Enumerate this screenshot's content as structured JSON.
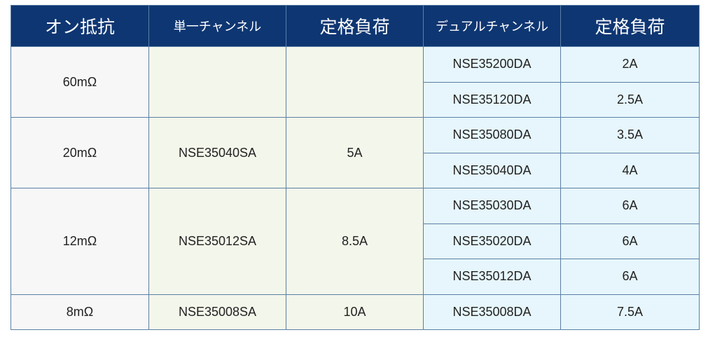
{
  "headers": {
    "on_resistance": "オン抵抗",
    "single_channel": "単一チャンネル",
    "rated_load_single": "定格負荷",
    "dual_channel": "デュアルチャンネル",
    "rated_load_dual": "定格負荷"
  },
  "colors": {
    "header": "#0e3672",
    "col_resistance": "#f7f7f7",
    "col_single": "#f3f6ea",
    "col_dual": "#e6f6fc",
    "border": "#5a7fa6"
  },
  "groups": [
    {
      "resistance": "60mΩ",
      "single": "",
      "single_load": "",
      "dual": [
        {
          "part": "NSE35200DA",
          "load": "2A"
        },
        {
          "part": "NSE35120DA",
          "load": "2.5A"
        }
      ]
    },
    {
      "resistance": "20mΩ",
      "single": "NSE35040SA",
      "single_load": "5A",
      "dual": [
        {
          "part": "NSE35080DA",
          "load": "3.5A"
        },
        {
          "part": "NSE35040DA",
          "load": "4A"
        }
      ]
    },
    {
      "resistance": "12mΩ",
      "single": "NSE35012SA",
      "single_load": "8.5A",
      "dual": [
        {
          "part": "NSE35030DA",
          "load": "6A"
        },
        {
          "part": "NSE35020DA",
          "load": "6A"
        },
        {
          "part": "NSE35012DA",
          "load": "6A"
        }
      ]
    },
    {
      "resistance": "8mΩ",
      "single": "NSE35008SA",
      "single_load": "10A",
      "dual": [
        {
          "part": "NSE35008DA",
          "load": "7.5A"
        }
      ]
    }
  ]
}
